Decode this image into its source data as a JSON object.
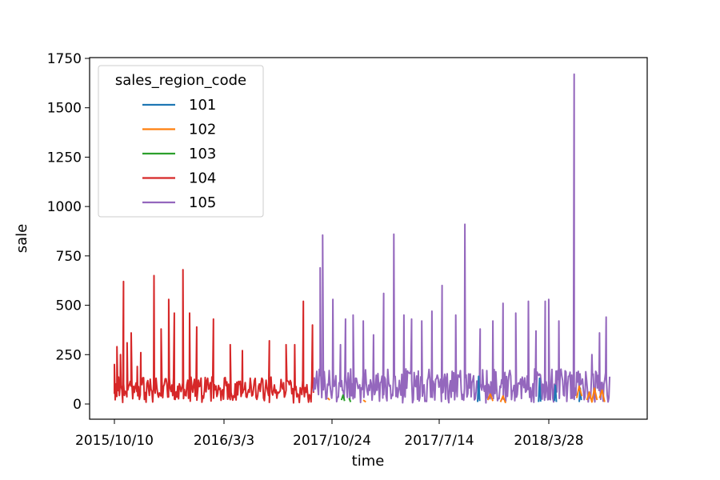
{
  "chart_data": {
    "type": "line",
    "xlabel": "time",
    "ylabel": "sale",
    "ylim": [
      -60,
      1750
    ],
    "y_ticks": [
      0,
      250,
      500,
      750,
      1000,
      1250,
      1500,
      1750
    ],
    "x_tick_labels": [
      "2015/10/10",
      "2016/3/3",
      "2017/10/24",
      "2017/7/14",
      "2018/3/28"
    ],
    "grid": false,
    "legend": {
      "title": "sales_region_code",
      "placement": "top-left"
    },
    "series": [
      {
        "name": "101",
        "color": "#1f77b4",
        "segments": [
          [
            [
              0.715,
              10
            ],
            [
              0.717,
              140
            ],
            [
              0.719,
              15
            ]
          ],
          [
            [
              0.835,
              10
            ],
            [
              0.837,
              130
            ],
            [
              0.839,
              12
            ]
          ],
          [
            [
              0.866,
              15
            ],
            [
              0.868,
              95
            ],
            [
              0.87,
              10
            ]
          ],
          [
            [
              0.915,
              10
            ],
            [
              0.917,
              80
            ],
            [
              0.919,
              20
            ]
          ]
        ]
      },
      {
        "name": "102",
        "color": "#ff7f0e",
        "segments": [
          [
            [
              0.42,
              30
            ],
            [
              0.424,
              20
            ]
          ],
          [
            [
              0.49,
              20
            ],
            [
              0.495,
              10
            ]
          ],
          [
            [
              0.735,
              20
            ],
            [
              0.74,
              50
            ],
            [
              0.745,
              15
            ]
          ],
          [
            [
              0.76,
              10
            ],
            [
              0.765,
              40
            ],
            [
              0.77,
              5
            ]
          ],
          [
            [
              0.91,
              30
            ],
            [
              0.915,
              90
            ],
            [
              0.92,
              40
            ]
          ],
          [
            [
              0.93,
              20
            ],
            [
              0.935,
              60
            ],
            [
              0.94,
              10
            ],
            [
              0.945,
              80
            ],
            [
              0.95,
              20
            ]
          ],
          [
            [
              0.955,
              30
            ],
            [
              0.96,
              70
            ],
            [
              0.965,
              10
            ]
          ]
        ]
      },
      {
        "name": "103",
        "color": "#2ca02c",
        "segments": [
          [
            [
              0.447,
              20
            ],
            [
              0.45,
              45
            ],
            [
              0.453,
              15
            ]
          ],
          [
            [
              0.462,
              30
            ],
            [
              0.465,
              10
            ]
          ]
        ]
      },
      {
        "name": "104",
        "color": "#d62728",
        "seed": 104,
        "x_range": [
          0.0,
          0.392
        ],
        "n": 240,
        "base": 90,
        "spread": 120,
        "peaks": [
          [
            0.0,
            200
          ],
          [
            0.005,
            290
          ],
          [
            0.012,
            250
          ],
          [
            0.018,
            620
          ],
          [
            0.025,
            310
          ],
          [
            0.033,
            360
          ],
          [
            0.045,
            190
          ],
          [
            0.052,
            260
          ],
          [
            0.078,
            650
          ],
          [
            0.092,
            380
          ],
          [
            0.107,
            530
          ],
          [
            0.118,
            460
          ],
          [
            0.135,
            680
          ],
          [
            0.148,
            460
          ],
          [
            0.162,
            390
          ],
          [
            0.195,
            430
          ],
          [
            0.228,
            300
          ],
          [
            0.252,
            270
          ],
          [
            0.305,
            320
          ],
          [
            0.338,
            300
          ],
          [
            0.355,
            300
          ],
          [
            0.372,
            520
          ],
          [
            0.39,
            400
          ]
        ]
      },
      {
        "name": "105",
        "color": "#9467bd",
        "seed": 105,
        "x_range": [
          0.392,
          0.975
        ],
        "n": 360,
        "base": 90,
        "spread": 160,
        "peaks": [
          [
            0.405,
            690
          ],
          [
            0.41,
            855
          ],
          [
            0.43,
            530
          ],
          [
            0.445,
            300
          ],
          [
            0.455,
            430
          ],
          [
            0.47,
            450
          ],
          [
            0.49,
            420
          ],
          [
            0.51,
            350
          ],
          [
            0.53,
            560
          ],
          [
            0.55,
            860
          ],
          [
            0.57,
            450
          ],
          [
            0.585,
            430
          ],
          [
            0.605,
            420
          ],
          [
            0.625,
            470
          ],
          [
            0.645,
            600
          ],
          [
            0.672,
            450
          ],
          [
            0.69,
            910
          ],
          [
            0.72,
            380
          ],
          [
            0.745,
            420
          ],
          [
            0.765,
            510
          ],
          [
            0.79,
            460
          ],
          [
            0.815,
            520
          ],
          [
            0.83,
            370
          ],
          [
            0.848,
            520
          ],
          [
            0.855,
            530
          ],
          [
            0.875,
            420
          ],
          [
            0.905,
            1670
          ],
          [
            0.94,
            250
          ],
          [
            0.955,
            360
          ],
          [
            0.968,
            440
          ]
        ]
      }
    ]
  }
}
